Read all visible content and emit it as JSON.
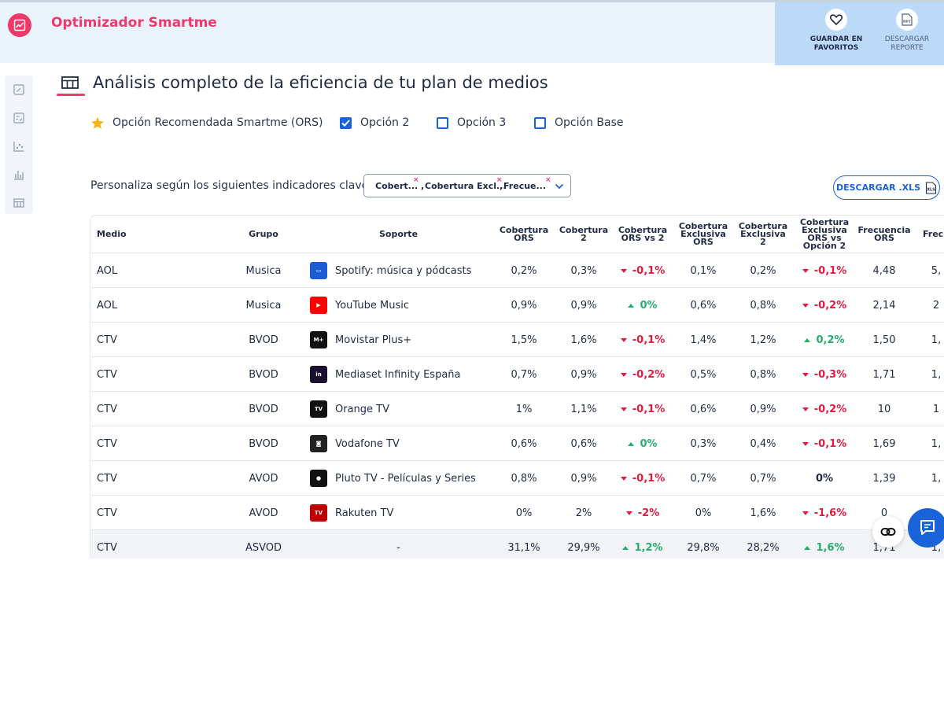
{
  "app": {
    "title": "Optimizador Smartme"
  },
  "header_actions": {
    "favorite_line1": "GUARDAR EN",
    "favorite_line2": "FAVORITOS",
    "report_line1": "DESCARGAR",
    "report_line2": "REPORTE",
    "report_icon_text": "PPT"
  },
  "section": {
    "title": "Análisis completo de la eficiencia de tu plan de medios"
  },
  "options": [
    {
      "label": "Opción Recomendada Smartme (ORS)",
      "type": "star"
    },
    {
      "label": "Opción 2",
      "checked": true
    },
    {
      "label": "Opción 3",
      "checked": false
    },
    {
      "label": "Opción Base",
      "checked": false
    }
  ],
  "filters": {
    "label": "Personaliza según los siguientes indicadores clave:",
    "chips": [
      "Cobert...",
      "Cobertura Excl...",
      "Frecue..."
    ],
    "chip_remove": "×",
    "chip_separator": ",",
    "download_label": "DESCARGAR .XLS",
    "download_icon_text": "XLS"
  },
  "table": {
    "columns": [
      [
        "Medio"
      ],
      [
        "Grupo"
      ],
      [
        "Soporte"
      ],
      [
        "Cobertura",
        "ORS"
      ],
      [
        "Cobertura",
        "2"
      ],
      [
        "Cobertura",
        "ORS vs 2"
      ],
      [
        "Cobertura",
        "Exclusiva",
        "ORS"
      ],
      [
        "Cobertura",
        "Exclusiva",
        "2"
      ],
      [
        "Cobertura",
        "Exclusiva",
        "ORS vs",
        "Opción 2"
      ],
      [
        "Frecuencia",
        "ORS"
      ],
      [
        "Frecu"
      ]
    ],
    "rows": [
      {
        "medio": "AOL",
        "grupo": "Musica",
        "soporte": "Spotify: música y pódcasts",
        "icon": "spotify-icon",
        "icon_color": "#1b5bd6",
        "icon_text": "▭",
        "cob_ors": "0,2%",
        "cob_2": "0,3%",
        "cob_vs": "-0,1%",
        "cob_vs_dir": "down",
        "exc_ors": "0,1%",
        "exc_2": "0,2%",
        "exc_vs": "-0,1%",
        "exc_vs_dir": "down",
        "frec_ors": "4,48",
        "frec_2": "5,"
      },
      {
        "medio": "AOL",
        "grupo": "Musica",
        "soporte": "YouTube Music",
        "icon": "youtube-music-icon",
        "icon_color": "#ff0000",
        "icon_text": "▶",
        "cob_ors": "0,9%",
        "cob_2": "0,9%",
        "cob_vs": "0%",
        "cob_vs_dir": "up",
        "exc_ors": "0,6%",
        "exc_2": "0,8%",
        "exc_vs": "-0,2%",
        "exc_vs_dir": "down",
        "frec_ors": "2,14",
        "frec_2": "2"
      },
      {
        "medio": "CTV",
        "grupo": "BVOD",
        "soporte": "Movistar Plus+",
        "icon": "movistar-plus-icon",
        "icon_color": "#111111",
        "icon_text": "M+",
        "cob_ors": "1,5%",
        "cob_2": "1,6%",
        "cob_vs": "-0,1%",
        "cob_vs_dir": "down",
        "exc_ors": "1,4%",
        "exc_2": "1,2%",
        "exc_vs": "0,2%",
        "exc_vs_dir": "up",
        "frec_ors": "1,50",
        "frec_2": "1,"
      },
      {
        "medio": "CTV",
        "grupo": "BVOD",
        "soporte": "Mediaset Infinity España",
        "icon": "mediaset-infinity-icon",
        "icon_color": "#1a1030",
        "icon_text": "in",
        "cob_ors": "0,7%",
        "cob_2": "0,9%",
        "cob_vs": "-0,2%",
        "cob_vs_dir": "down",
        "exc_ors": "0,5%",
        "exc_2": "0,8%",
        "exc_vs": "-0,3%",
        "exc_vs_dir": "down",
        "frec_ors": "1,71",
        "frec_2": "1,"
      },
      {
        "medio": "CTV",
        "grupo": "BVOD",
        "soporte": "Orange TV",
        "icon": "orange-tv-icon",
        "icon_color": "#111111",
        "icon_text": "TV",
        "cob_ors": "1%",
        "cob_2": "1,1%",
        "cob_vs": "-0,1%",
        "cob_vs_dir": "down",
        "exc_ors": "0,6%",
        "exc_2": "0,9%",
        "exc_vs": "-0,2%",
        "exc_vs_dir": "down",
        "frec_ors": "10",
        "frec_2": "1"
      },
      {
        "medio": "CTV",
        "grupo": "BVOD",
        "soporte": "Vodafone TV",
        "icon": "vodafone-tv-icon",
        "icon_color": "#222222",
        "icon_text": "◙",
        "cob_ors": "0,6%",
        "cob_2": "0,6%",
        "cob_vs": "0%",
        "cob_vs_dir": "up",
        "exc_ors": "0,3%",
        "exc_2": "0,4%",
        "exc_vs": "-0,1%",
        "exc_vs_dir": "down",
        "frec_ors": "1,69",
        "frec_2": "1,"
      },
      {
        "medio": "CTV",
        "grupo": "AVOD",
        "soporte": "Pluto TV - Películas y Series",
        "icon": "pluto-tv-icon",
        "icon_color": "#111111",
        "icon_text": "●",
        "cob_ors": "0,8%",
        "cob_2": "0,9%",
        "cob_vs": "-0,1%",
        "cob_vs_dir": "down",
        "exc_ors": "0,7%",
        "exc_2": "0,7%",
        "exc_vs": "0%",
        "exc_vs_dir": "flat",
        "frec_ors": "1,39",
        "frec_2": "1,"
      },
      {
        "medio": "CTV",
        "grupo": "AVOD",
        "soporte": "Rakuten TV",
        "icon": "rakuten-tv-icon",
        "icon_color": "#bf0000",
        "icon_text": "TV",
        "cob_ors": "0%",
        "cob_2": "2%",
        "cob_vs": "-2%",
        "cob_vs_dir": "down",
        "exc_ors": "0%",
        "exc_2": "1,6%",
        "exc_vs": "-1,6%",
        "exc_vs_dir": "down",
        "frec_ors": "0",
        "frec_2": ""
      },
      {
        "medio": "CTV",
        "grupo": "ASVOD",
        "soporte": "-",
        "icon": "",
        "icon_color": "",
        "icon_text": "",
        "cob_ors": "31,1%",
        "cob_2": "29,9%",
        "cob_vs": "1,2%",
        "cob_vs_dir": "up",
        "exc_ors": "29,8%",
        "exc_2": "28,2%",
        "exc_vs": "1,6%",
        "exc_vs_dir": "up",
        "frec_ors": "1,71",
        "frec_2": "1,",
        "total": true
      }
    ]
  },
  "colors": {
    "brand": "#f0386b",
    "accent": "#1a63d8",
    "down": "#e5193f",
    "up": "#23b06b"
  }
}
